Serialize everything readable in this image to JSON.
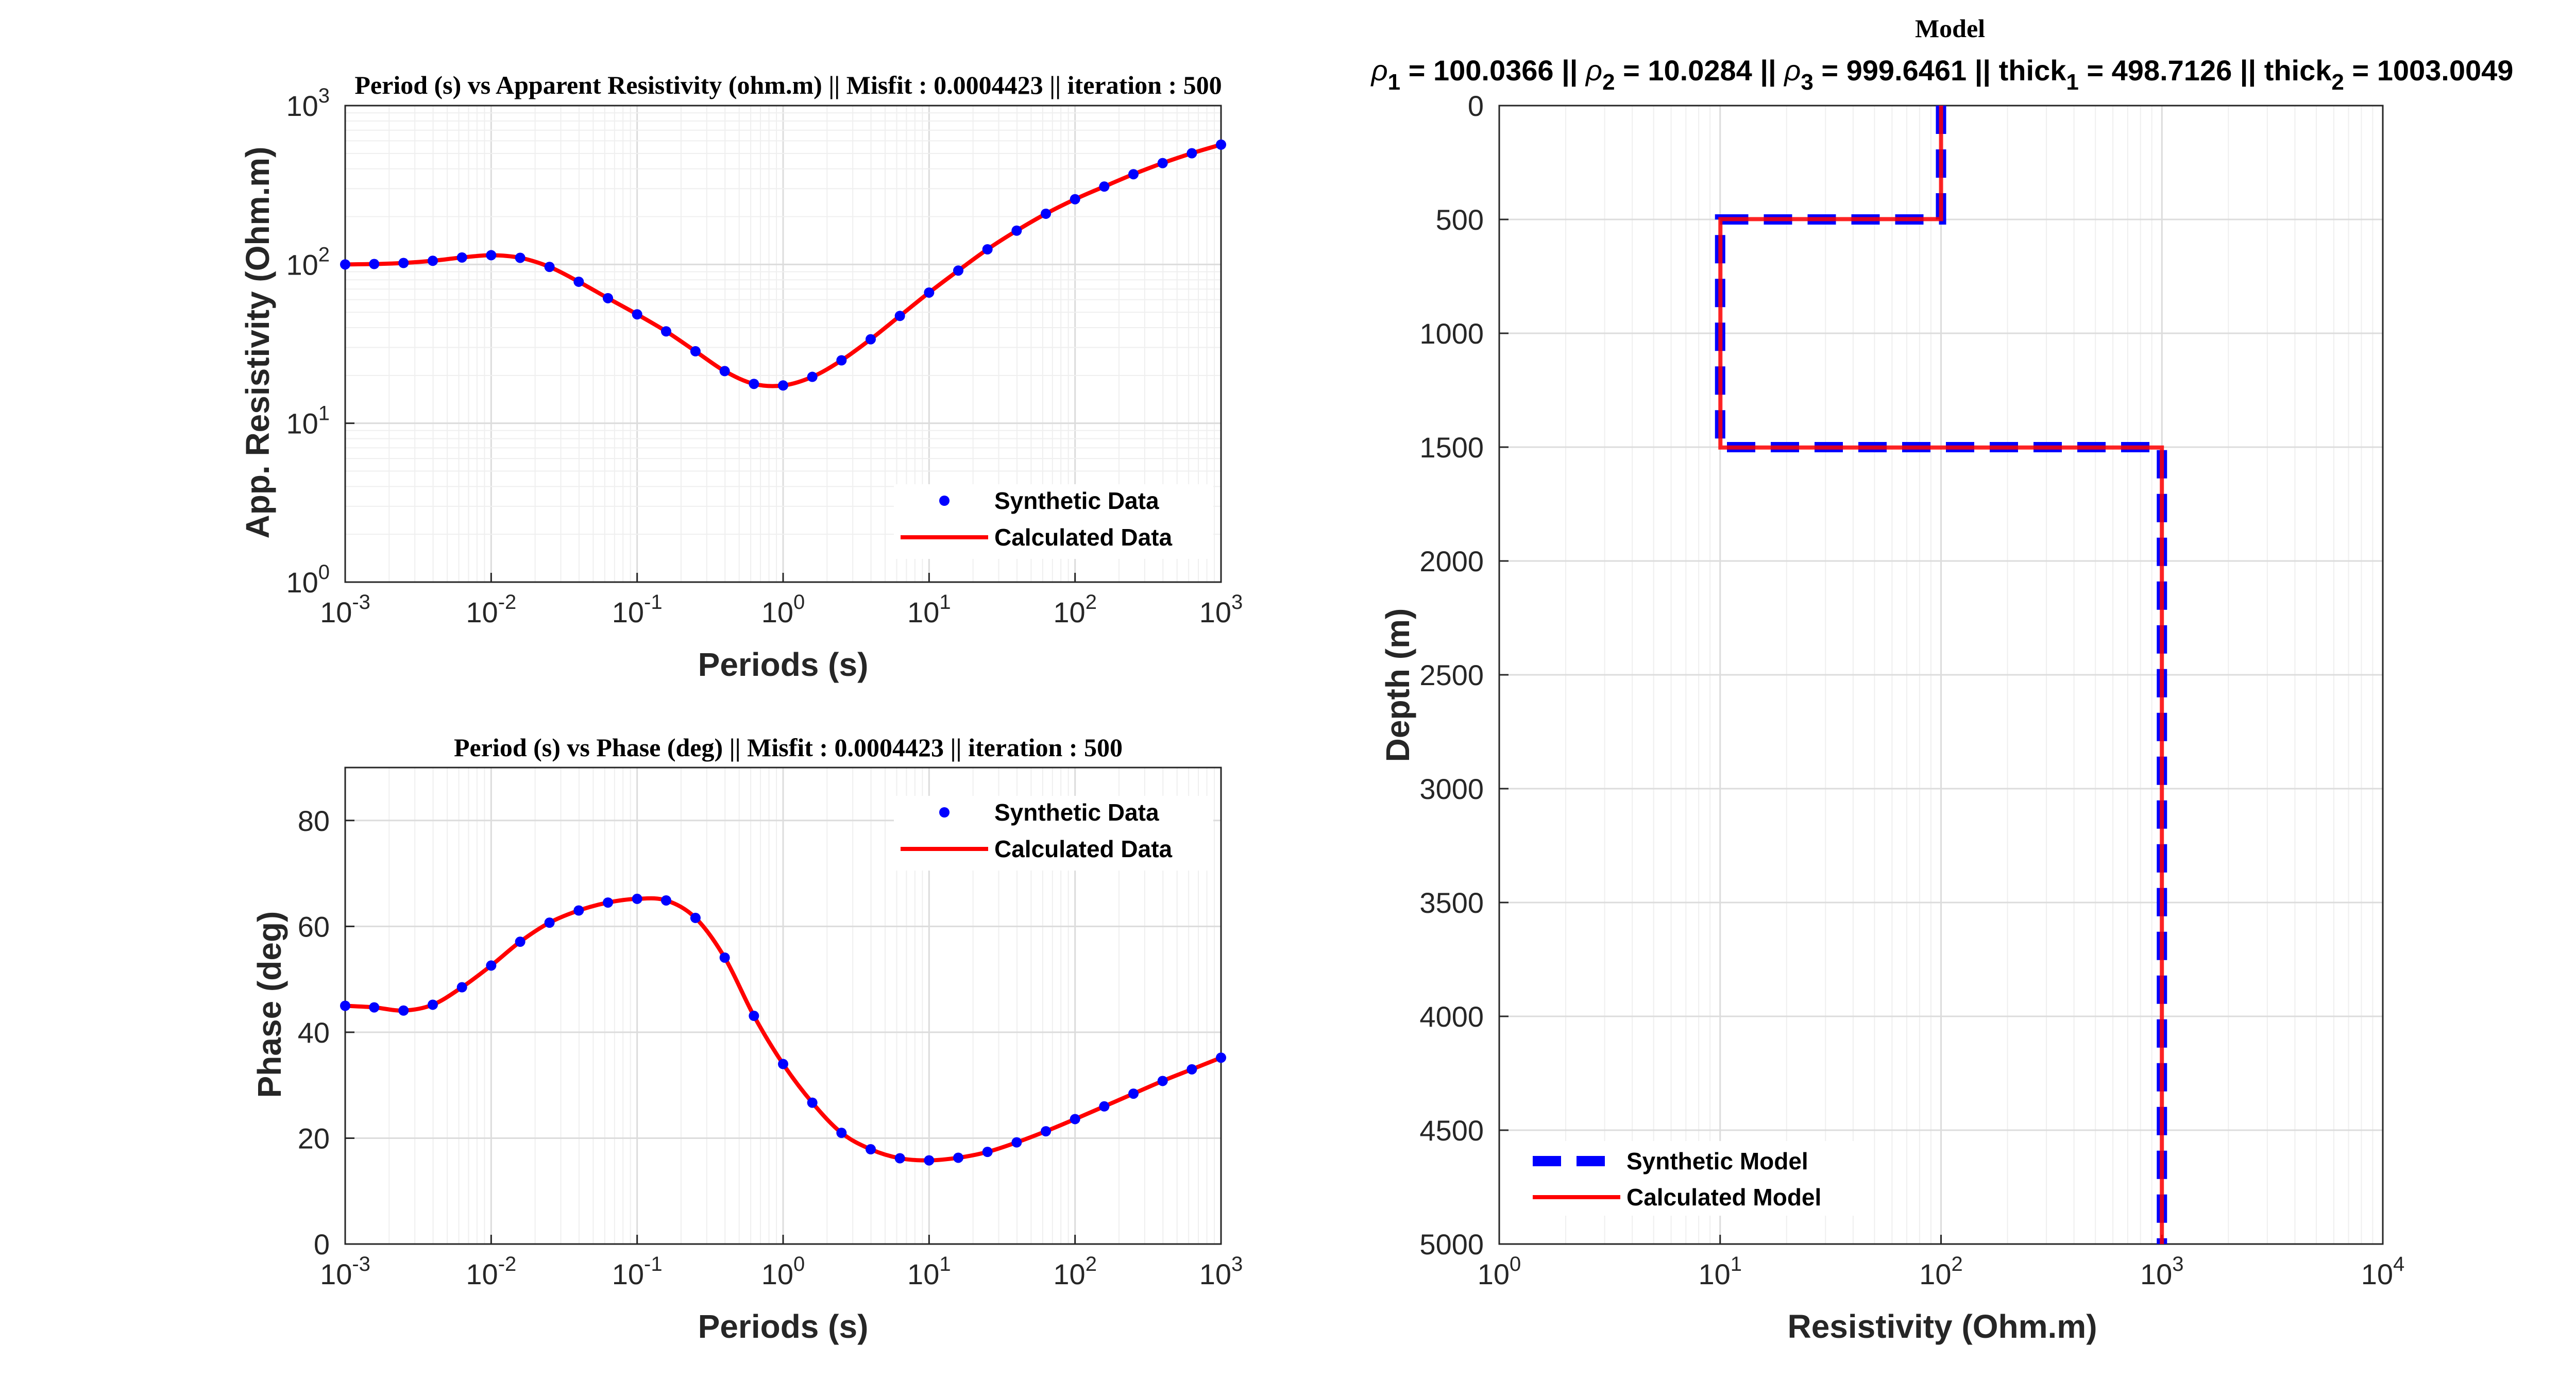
{
  "colors": {
    "synthetic": "#0000ff",
    "calculated": "#ff0000",
    "axis": "#262626",
    "grid_major": "#dcdcdc",
    "grid_minor": "#efefef"
  },
  "chart_data": [
    {
      "id": "resistivity",
      "type": "line",
      "title": "Period (s) vs Apparent Resistivity (ohm.m)  || Misfit : 0.0004423 || iteration : 500",
      "xlabel": "Periods (s)",
      "ylabel": "App. Resistivity (Ohm.m)",
      "xscale": "log",
      "yscale": "log",
      "xlim": [
        0.001,
        1000
      ],
      "ylim": [
        1,
        1000
      ],
      "xticks": [
        {
          "base": "10",
          "exp": "-3"
        },
        {
          "base": "10",
          "exp": "-2"
        },
        {
          "base": "10",
          "exp": "-1"
        },
        {
          "base": "10",
          "exp": "0"
        },
        {
          "base": "10",
          "exp": "1"
        },
        {
          "base": "10",
          "exp": "2"
        },
        {
          "base": "10",
          "exp": "3"
        }
      ],
      "yticks": [
        {
          "base": "10",
          "exp": "0"
        },
        {
          "base": "10",
          "exp": "1"
        },
        {
          "base": "10",
          "exp": "2"
        },
        {
          "base": "10",
          "exp": "3"
        }
      ],
      "grid": true,
      "legend_position": "bottom-right",
      "series": [
        {
          "name": "Synthetic Data",
          "style": "markers",
          "points": [
            [
              0.001,
              100.0
            ],
            [
              0.00158,
              100.6
            ],
            [
              0.00251,
              102.1
            ],
            [
              0.00398,
              105.4
            ],
            [
              0.00631,
              110.6
            ],
            [
              0.01,
              114.3
            ],
            [
              0.0158,
              110.1
            ],
            [
              0.0251,
              96.5
            ],
            [
              0.0398,
              77.8
            ],
            [
              0.0631,
              61.3
            ],
            [
              0.1,
              48.5
            ],
            [
              0.158,
              37.9
            ],
            [
              0.251,
              28.4
            ],
            [
              0.398,
              21.3
            ],
            [
              0.631,
              17.7
            ],
            [
              1.0,
              17.3
            ],
            [
              1.585,
              19.6
            ],
            [
              2.512,
              24.9
            ],
            [
              3.981,
              33.8
            ],
            [
              6.31,
              47.4
            ],
            [
              10.0,
              66.5
            ],
            [
              15.85,
              91.5
            ],
            [
              25.12,
              124.5
            ],
            [
              39.81,
              163.2
            ],
            [
              63.1,
              208.5
            ],
            [
              100.0,
              257.4
            ],
            [
              158.5,
              309.2
            ],
            [
              251.2,
              369.8
            ],
            [
              398.1,
              434.5
            ],
            [
              631.0,
              501.0
            ],
            [
              1000.0,
              568.0
            ]
          ]
        },
        {
          "name": "Calculated Data",
          "style": "line",
          "points": [
            [
              0.001,
              100.0
            ],
            [
              0.00158,
              100.6
            ],
            [
              0.00251,
              102.1
            ],
            [
              0.00398,
              105.4
            ],
            [
              0.00631,
              110.6
            ],
            [
              0.01,
              114.3
            ],
            [
              0.0158,
              110.1
            ],
            [
              0.0251,
              96.5
            ],
            [
              0.0398,
              77.8
            ],
            [
              0.0631,
              61.3
            ],
            [
              0.1,
              48.5
            ],
            [
              0.158,
              37.9
            ],
            [
              0.251,
              28.4
            ],
            [
              0.398,
              21.3
            ],
            [
              0.631,
              17.7
            ],
            [
              1.0,
              17.3
            ],
            [
              1.585,
              19.6
            ],
            [
              2.512,
              24.9
            ],
            [
              3.981,
              33.8
            ],
            [
              6.31,
              47.4
            ],
            [
              10.0,
              66.5
            ],
            [
              15.85,
              91.5
            ],
            [
              25.12,
              124.5
            ],
            [
              39.81,
              163.2
            ],
            [
              63.1,
              208.5
            ],
            [
              100.0,
              257.4
            ],
            [
              158.5,
              309.2
            ],
            [
              251.2,
              369.8
            ],
            [
              398.1,
              434.5
            ],
            [
              631.0,
              501.0
            ],
            [
              1000.0,
              568.0
            ]
          ]
        }
      ]
    },
    {
      "id": "phase",
      "type": "line",
      "title": "Period (s) vs Phase (deg)  || Misfit : 0.0004423 || iteration : 500",
      "xlabel": "Periods (s)",
      "ylabel": "Phase (deg)",
      "xscale": "log",
      "yscale": "linear",
      "xlim": [
        0.001,
        1000
      ],
      "ylim": [
        0,
        90
      ],
      "xticks": [
        {
          "base": "10",
          "exp": "-3"
        },
        {
          "base": "10",
          "exp": "-2"
        },
        {
          "base": "10",
          "exp": "-1"
        },
        {
          "base": "10",
          "exp": "0"
        },
        {
          "base": "10",
          "exp": "1"
        },
        {
          "base": "10",
          "exp": "2"
        },
        {
          "base": "10",
          "exp": "3"
        }
      ],
      "yticks": [
        "0",
        "20",
        "40",
        "60",
        "80"
      ],
      "grid": true,
      "legend_position": "top-right",
      "series": [
        {
          "name": "Synthetic Data",
          "style": "markers",
          "points": [
            [
              0.001,
              45.0
            ],
            [
              0.00158,
              44.7
            ],
            [
              0.00251,
              44.1
            ],
            [
              0.00398,
              45.2
            ],
            [
              0.00631,
              48.5
            ],
            [
              0.01,
              52.6
            ],
            [
              0.0158,
              57.1
            ],
            [
              0.0251,
              60.7
            ],
            [
              0.0398,
              63.0
            ],
            [
              0.0631,
              64.5
            ],
            [
              0.1,
              65.2
            ],
            [
              0.158,
              64.9
            ],
            [
              0.251,
              61.6
            ],
            [
              0.398,
              54.1
            ],
            [
              0.631,
              43.1
            ],
            [
              1.0,
              34.0
            ],
            [
              1.585,
              26.7
            ],
            [
              2.512,
              21.0
            ],
            [
              3.981,
              17.9
            ],
            [
              6.31,
              16.2
            ],
            [
              10.0,
              15.8
            ],
            [
              15.85,
              16.3
            ],
            [
              25.12,
              17.4
            ],
            [
              39.81,
              19.2
            ],
            [
              63.1,
              21.3
            ],
            [
              100.0,
              23.6
            ],
            [
              158.5,
              26.0
            ],
            [
              251.2,
              28.4
            ],
            [
              398.1,
              30.8
            ],
            [
              631.0,
              33.0
            ],
            [
              1000.0,
              35.2
            ]
          ]
        },
        {
          "name": "Calculated Data",
          "style": "line",
          "points": [
            [
              0.001,
              45.0
            ],
            [
              0.00158,
              44.7
            ],
            [
              0.00251,
              44.1
            ],
            [
              0.00398,
              45.2
            ],
            [
              0.00631,
              48.5
            ],
            [
              0.01,
              52.6
            ],
            [
              0.0158,
              57.1
            ],
            [
              0.0251,
              60.7
            ],
            [
              0.0398,
              63.0
            ],
            [
              0.0631,
              64.5
            ],
            [
              0.1,
              65.2
            ],
            [
              0.158,
              64.9
            ],
            [
              0.251,
              61.6
            ],
            [
              0.398,
              54.1
            ],
            [
              0.631,
              43.1
            ],
            [
              1.0,
              34.0
            ],
            [
              1.585,
              26.7
            ],
            [
              2.512,
              21.0
            ],
            [
              3.981,
              17.9
            ],
            [
              6.31,
              16.2
            ],
            [
              10.0,
              15.8
            ],
            [
              15.85,
              16.3
            ],
            [
              25.12,
              17.4
            ],
            [
              39.81,
              19.2
            ],
            [
              63.1,
              21.3
            ],
            [
              100.0,
              23.6
            ],
            [
              158.5,
              26.0
            ],
            [
              251.2,
              28.4
            ],
            [
              398.1,
              30.8
            ],
            [
              631.0,
              33.0
            ],
            [
              1000.0,
              35.2
            ]
          ]
        }
      ]
    },
    {
      "id": "model",
      "type": "line",
      "title": "Model",
      "subtitle_parts": [
        {
          "rho": "ρ",
          "sub": "1",
          "text": " = 100.0366 || "
        },
        {
          "rho": "ρ",
          "sub": "2",
          "text": " = 10.0284 || "
        },
        {
          "rho": "ρ",
          "sub": "3",
          "text": " = 999.6461 || thick"
        },
        {
          "sub": "1",
          "text": " = 498.7126 || thick"
        },
        {
          "sub": "2",
          "text": " = 1003.0049"
        }
      ],
      "xlabel": "Resistivity (Ohm.m)",
      "ylabel": "Depth (m)",
      "xscale": "log",
      "yscale": "linear",
      "y_reversed": true,
      "xlim": [
        1,
        10000
      ],
      "ylim": [
        0,
        5000
      ],
      "xticks": [
        {
          "base": "10",
          "exp": "0"
        },
        {
          "base": "10",
          "exp": "1"
        },
        {
          "base": "10",
          "exp": "2"
        },
        {
          "base": "10",
          "exp": "3"
        },
        {
          "base": "10",
          "exp": "4"
        }
      ],
      "yticks": [
        "0",
        "500",
        "1000",
        "1500",
        "2000",
        "2500",
        "3000",
        "3500",
        "4000",
        "4500",
        "5000"
      ],
      "grid": true,
      "legend_position": "bottom-left",
      "series": [
        {
          "name": "Synthetic Model",
          "style": "dashed",
          "points": [
            [
              100,
              0
            ],
            [
              100,
              500
            ],
            [
              10,
              500
            ],
            [
              10,
              1500
            ],
            [
              1000,
              1500
            ],
            [
              1000,
              5000
            ]
          ]
        },
        {
          "name": "Calculated Model",
          "style": "line",
          "points": [
            [
              100.0366,
              0
            ],
            [
              100.0366,
              498.7126
            ],
            [
              10.0284,
              498.7126
            ],
            [
              10.0284,
              1501.7175
            ],
            [
              999.6461,
              1501.7175
            ],
            [
              999.6461,
              5000
            ]
          ]
        }
      ]
    }
  ]
}
